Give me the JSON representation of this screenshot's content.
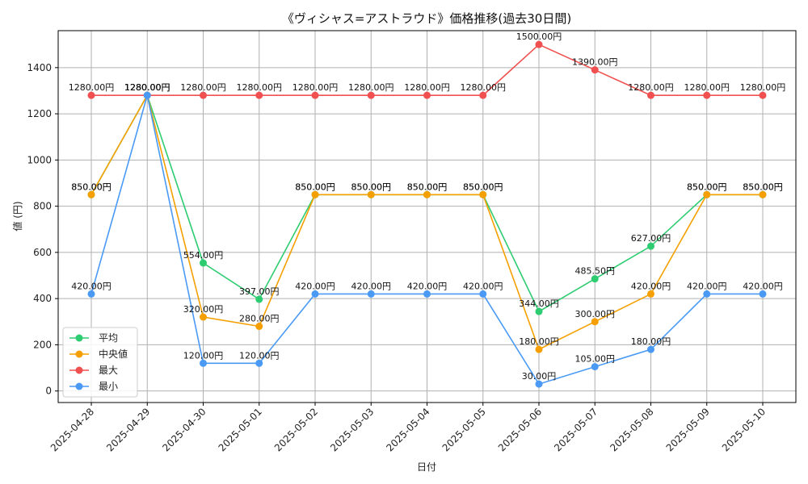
{
  "chart_data": {
    "type": "line",
    "title": "《ヴィシャス=アストラウド》価格推移(過去30日間)",
    "xlabel": "日付",
    "ylabel": "値 (円)",
    "categories": [
      "2025-04-28",
      "2025-04-29",
      "2025-04-30",
      "2025-05-01",
      "2025-05-02",
      "2025-05-03",
      "2025-05-04",
      "2025-05-05",
      "2025-05-06",
      "2025-05-07",
      "2025-05-08",
      "2025-05-09",
      "2025-05-10"
    ],
    "ylim": [
      -50,
      1560
    ],
    "yticks": [
      0,
      200,
      400,
      600,
      800,
      1000,
      1200,
      1400
    ],
    "grid": true,
    "legend_position": "bottom-left",
    "value_suffix": "円",
    "series": [
      {
        "name": "平均",
        "color": "#2ecc71",
        "values": [
          850,
          1280,
          554,
          397,
          850,
          850,
          850,
          850,
          344,
          485.5,
          627,
          850,
          850
        ]
      },
      {
        "name": "中央値",
        "color": "#f5a000",
        "values": [
          850,
          1280,
          320,
          280,
          850,
          850,
          850,
          850,
          180,
          300,
          420,
          850,
          850
        ]
      },
      {
        "name": "最大",
        "color": "#f05050",
        "values": [
          1280,
          1280,
          1280,
          1280,
          1280,
          1280,
          1280,
          1280,
          1500,
          1390,
          1280,
          1280,
          1280
        ]
      },
      {
        "name": "最小",
        "color": "#4a9af5",
        "values": [
          420,
          1280,
          120,
          120,
          420,
          420,
          420,
          420,
          30,
          105,
          180,
          420,
          420
        ]
      }
    ]
  }
}
